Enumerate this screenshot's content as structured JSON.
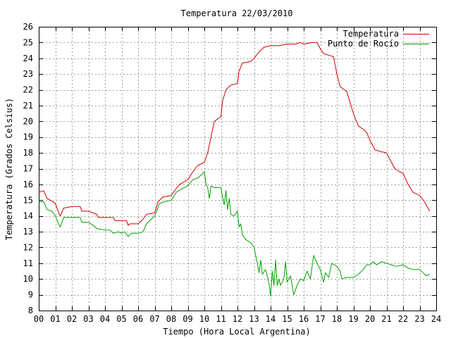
{
  "chart_data": {
    "type": "line",
    "title": "Temperatura 22/03/2010",
    "xlabel": "Tiempo (Hora Local Argentina)",
    "ylabel": "Temperatura (Grados Celsius)",
    "xlim": [
      0,
      24
    ],
    "ylim": [
      8,
      26
    ],
    "x_ticks": [
      0,
      1,
      2,
      3,
      4,
      5,
      6,
      7,
      8,
      9,
      10,
      11,
      12,
      13,
      14,
      15,
      16,
      17,
      18,
      19,
      20,
      21,
      22,
      23,
      24
    ],
    "x_tick_labels": [
      "00",
      "01",
      "02",
      "03",
      "04",
      "05",
      "06",
      "07",
      "08",
      "09",
      "10",
      "11",
      "12",
      "13",
      "14",
      "15",
      "16",
      "17",
      "18",
      "19",
      "20",
      "21",
      "22",
      "23",
      "24"
    ],
    "y_ticks": [
      8,
      9,
      10,
      11,
      12,
      13,
      14,
      15,
      16,
      17,
      18,
      19,
      20,
      21,
      22,
      23,
      24,
      25,
      26
    ],
    "y_tick_labels": [
      "8",
      "9",
      "10",
      "11",
      "12",
      "13",
      "14",
      "15",
      "16",
      "17",
      "18",
      "19",
      "20",
      "21",
      "22",
      "23",
      "24",
      "25",
      "26"
    ],
    "grid": true,
    "legend_position": "top-right",
    "series": [
      {
        "name": "Temperatura",
        "color": "#cc0000",
        "points": [
          [
            0.0,
            15.5
          ],
          [
            0.3,
            15.6
          ],
          [
            0.5,
            15.1
          ],
          [
            0.7,
            15.0
          ],
          [
            1.0,
            14.8
          ],
          [
            1.2,
            14.2
          ],
          [
            1.3,
            14.0
          ],
          [
            1.5,
            14.5
          ],
          [
            2.0,
            14.6
          ],
          [
            2.5,
            14.6
          ],
          [
            2.6,
            14.3
          ],
          [
            3.0,
            14.3
          ],
          [
            3.5,
            14.1
          ],
          [
            3.6,
            13.9
          ],
          [
            4.0,
            13.9
          ],
          [
            4.5,
            13.9
          ],
          [
            4.6,
            13.7
          ],
          [
            5.0,
            13.7
          ],
          [
            5.3,
            13.7
          ],
          [
            5.4,
            13.4
          ],
          [
            5.5,
            13.5
          ],
          [
            6.0,
            13.5
          ],
          [
            6.3,
            13.8
          ],
          [
            6.5,
            14.1
          ],
          [
            7.0,
            14.2
          ],
          [
            7.2,
            14.9
          ],
          [
            7.5,
            15.2
          ],
          [
            8.0,
            15.3
          ],
          [
            8.2,
            15.6
          ],
          [
            8.5,
            16.0
          ],
          [
            9.0,
            16.3
          ],
          [
            9.3,
            16.8
          ],
          [
            9.6,
            17.2
          ],
          [
            10.0,
            17.4
          ],
          [
            10.2,
            18.0
          ],
          [
            10.4,
            19.0
          ],
          [
            10.6,
            20.0
          ],
          [
            11.0,
            20.3
          ],
          [
            11.1,
            21.3
          ],
          [
            11.3,
            22.0
          ],
          [
            11.6,
            22.3
          ],
          [
            12.0,
            22.4
          ],
          [
            12.1,
            23.2
          ],
          [
            12.3,
            23.7
          ],
          [
            12.8,
            23.8
          ],
          [
            13.0,
            24.0
          ],
          [
            13.3,
            24.4
          ],
          [
            13.6,
            24.7
          ],
          [
            14.0,
            24.8
          ],
          [
            14.5,
            24.8
          ],
          [
            15.0,
            24.9
          ],
          [
            15.5,
            24.9
          ],
          [
            15.8,
            25.0
          ],
          [
            16.0,
            24.9
          ],
          [
            16.5,
            25.0
          ],
          [
            16.8,
            25.0
          ],
          [
            17.0,
            24.6
          ],
          [
            17.2,
            24.3
          ],
          [
            17.5,
            24.2
          ],
          [
            17.8,
            24.1
          ],
          [
            18.0,
            23.0
          ],
          [
            18.2,
            22.2
          ],
          [
            18.6,
            21.9
          ],
          [
            19.0,
            20.5
          ],
          [
            19.3,
            19.7
          ],
          [
            19.6,
            19.5
          ],
          [
            19.8,
            19.3
          ],
          [
            20.0,
            18.8
          ],
          [
            20.3,
            18.2
          ],
          [
            20.6,
            18.1
          ],
          [
            21.0,
            18.0
          ],
          [
            21.2,
            17.6
          ],
          [
            21.5,
            17.0
          ],
          [
            21.8,
            16.8
          ],
          [
            22.0,
            16.7
          ],
          [
            22.3,
            16.0
          ],
          [
            22.6,
            15.5
          ],
          [
            23.0,
            15.3
          ],
          [
            23.3,
            14.9
          ],
          [
            23.6,
            14.3
          ]
        ]
      },
      {
        "name": "Punto de Rocío",
        "color": "#00a000",
        "points": [
          [
            0.0,
            14.9
          ],
          [
            0.3,
            14.9
          ],
          [
            0.5,
            14.4
          ],
          [
            0.8,
            14.3
          ],
          [
            1.0,
            14.0
          ],
          [
            1.2,
            13.5
          ],
          [
            1.3,
            13.3
          ],
          [
            1.5,
            13.9
          ],
          [
            2.0,
            13.9
          ],
          [
            2.5,
            13.9
          ],
          [
            2.6,
            13.6
          ],
          [
            3.0,
            13.6
          ],
          [
            3.3,
            13.4
          ],
          [
            3.5,
            13.2
          ],
          [
            4.0,
            13.1
          ],
          [
            4.3,
            13.1
          ],
          [
            4.5,
            12.9
          ],
          [
            4.8,
            13.0
          ],
          [
            5.0,
            12.9
          ],
          [
            5.2,
            13.0
          ],
          [
            5.4,
            12.7
          ],
          [
            5.6,
            12.9
          ],
          [
            6.0,
            12.9
          ],
          [
            6.3,
            13.0
          ],
          [
            6.5,
            13.5
          ],
          [
            6.8,
            13.8
          ],
          [
            7.0,
            14.0
          ],
          [
            7.3,
            14.8
          ],
          [
            7.6,
            14.9
          ],
          [
            8.0,
            15.0
          ],
          [
            8.3,
            15.5
          ],
          [
            8.6,
            15.7
          ],
          [
            9.0,
            15.9
          ],
          [
            9.3,
            16.3
          ],
          [
            9.6,
            16.4
          ],
          [
            9.8,
            16.6
          ],
          [
            10.0,
            16.8
          ],
          [
            10.1,
            16.0
          ],
          [
            10.2,
            15.8
          ],
          [
            10.3,
            15.1
          ],
          [
            10.4,
            15.9
          ],
          [
            10.6,
            15.8
          ],
          [
            11.0,
            15.8
          ],
          [
            11.1,
            15.2
          ],
          [
            11.2,
            14.7
          ],
          [
            11.3,
            15.6
          ],
          [
            11.4,
            14.4
          ],
          [
            11.5,
            15.1
          ],
          [
            11.6,
            14.1
          ],
          [
            11.8,
            14.0
          ],
          [
            12.0,
            14.3
          ],
          [
            12.1,
            13.3
          ],
          [
            12.2,
            13.5
          ],
          [
            12.3,
            12.8
          ],
          [
            12.5,
            12.5
          ],
          [
            12.8,
            12.3
          ],
          [
            13.0,
            12.0
          ],
          [
            13.1,
            11.5
          ],
          [
            13.2,
            11.0
          ],
          [
            13.3,
            10.4
          ],
          [
            13.4,
            11.2
          ],
          [
            13.5,
            10.3
          ],
          [
            13.7,
            10.6
          ],
          [
            13.8,
            10.2
          ],
          [
            13.9,
            9.7
          ],
          [
            14.0,
            8.9
          ],
          [
            14.1,
            10.5
          ],
          [
            14.2,
            9.6
          ],
          [
            14.3,
            11.2
          ],
          [
            14.4,
            9.6
          ],
          [
            14.5,
            10.0
          ],
          [
            14.6,
            9.6
          ],
          [
            14.8,
            10.0
          ],
          [
            14.9,
            11.1
          ],
          [
            15.0,
            9.8
          ],
          [
            15.2,
            10.2
          ],
          [
            15.4,
            9.0
          ],
          [
            15.6,
            9.6
          ],
          [
            15.8,
            10.0
          ],
          [
            16.0,
            9.9
          ],
          [
            16.2,
            10.5
          ],
          [
            16.4,
            10.0
          ],
          [
            16.6,
            11.5
          ],
          [
            16.8,
            11.0
          ],
          [
            17.0,
            10.6
          ],
          [
            17.2,
            9.8
          ],
          [
            17.3,
            10.4
          ],
          [
            17.5,
            10.1
          ],
          [
            17.7,
            11.0
          ],
          [
            18.0,
            10.8
          ],
          [
            18.2,
            10.5
          ],
          [
            18.3,
            10.0
          ],
          [
            18.6,
            10.1
          ],
          [
            19.0,
            10.1
          ],
          [
            19.3,
            10.3
          ],
          [
            19.6,
            10.6
          ],
          [
            19.8,
            10.9
          ],
          [
            20.0,
            10.9
          ],
          [
            20.2,
            11.1
          ],
          [
            20.4,
            10.9
          ],
          [
            20.7,
            11.1
          ],
          [
            21.0,
            11.0
          ],
          [
            21.3,
            10.9
          ],
          [
            21.6,
            10.8
          ],
          [
            22.0,
            10.9
          ],
          [
            22.3,
            10.7
          ],
          [
            22.6,
            10.6
          ],
          [
            23.0,
            10.6
          ],
          [
            23.2,
            10.4
          ],
          [
            23.4,
            10.2
          ],
          [
            23.6,
            10.3
          ]
        ]
      }
    ]
  }
}
